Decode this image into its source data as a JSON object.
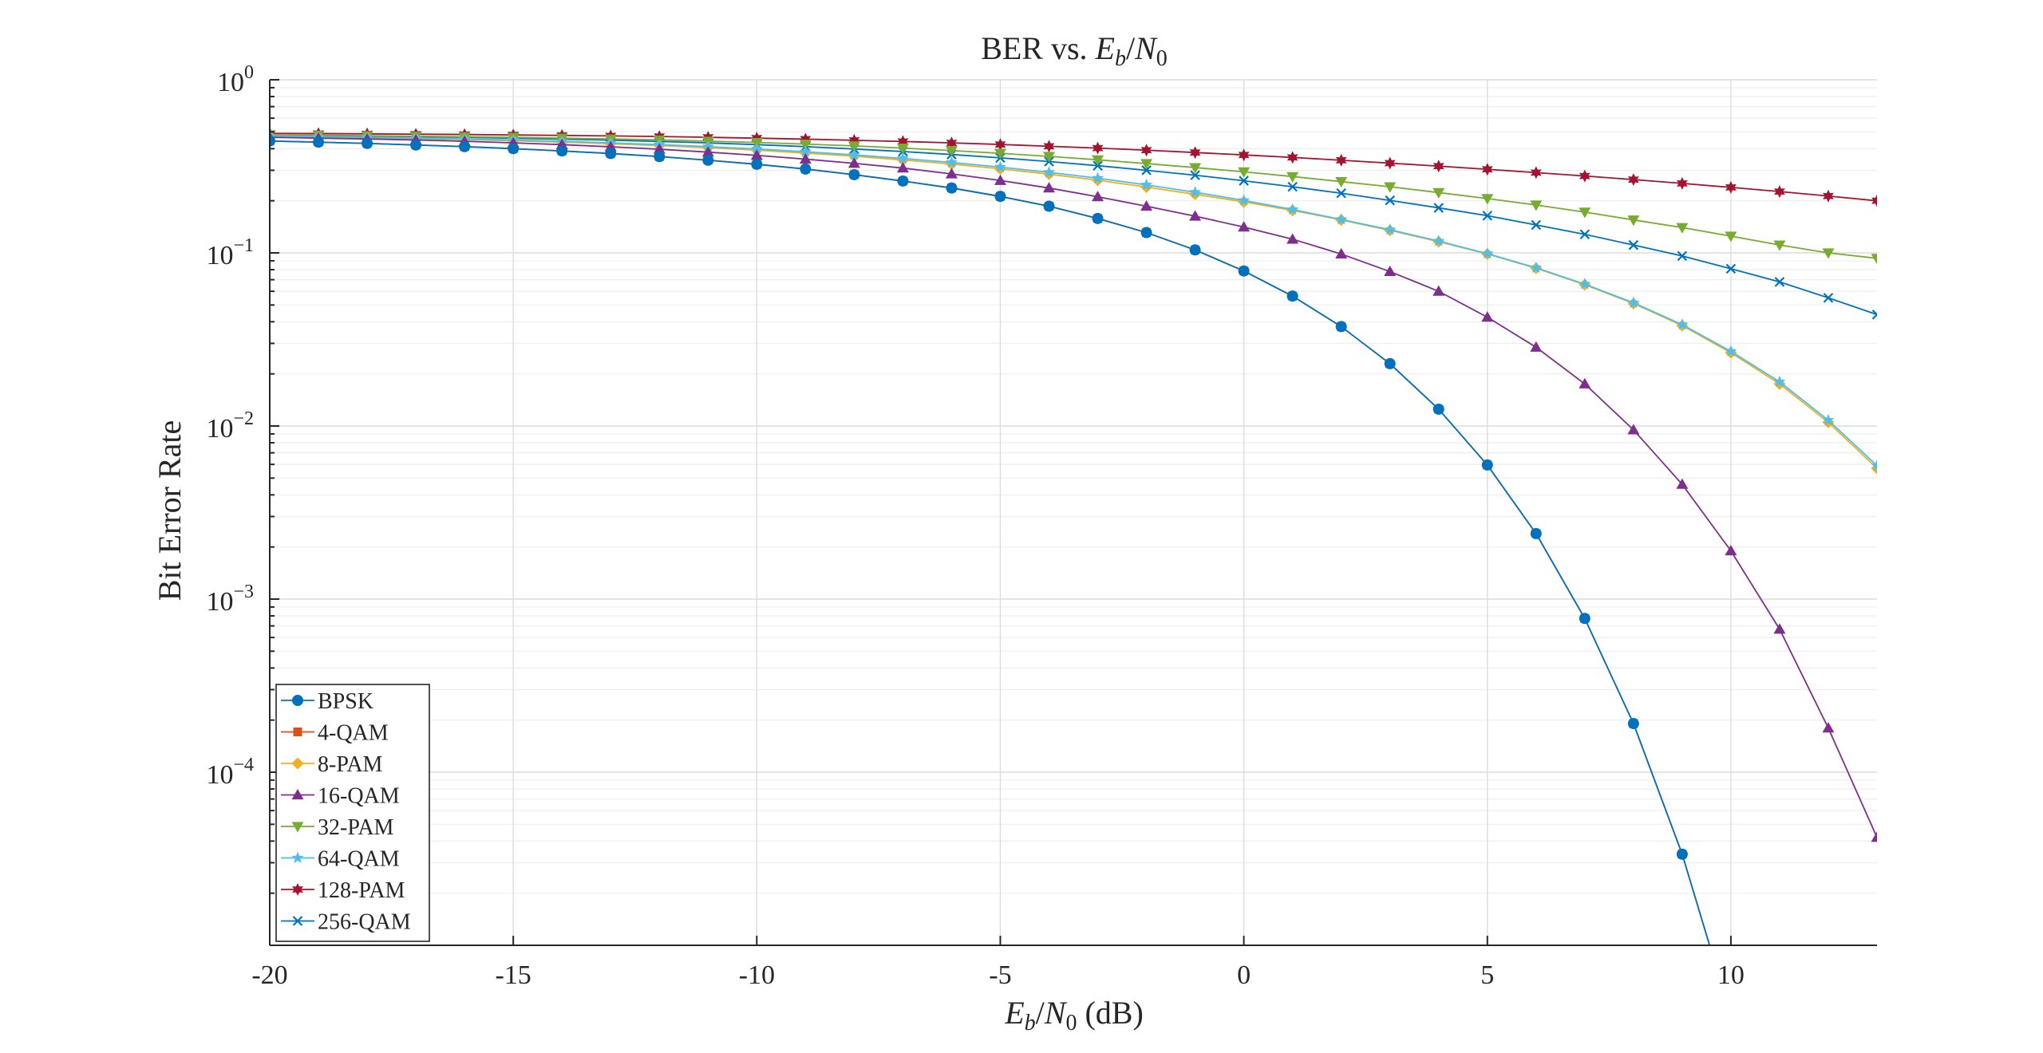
{
  "chart_data": {
    "type": "line",
    "title": "BER vs. Eb/N0",
    "title_parts": {
      "prefix": "BER vs. ",
      "eb_main": "E",
      "eb_sub": "b",
      "slash": "/",
      "n0_main": "N",
      "n0_sub": "0"
    },
    "xlabel": "Eb/N0 (dB)",
    "xlabel_parts": {
      "eb_main": "E",
      "eb_sub": "b",
      "slash": "/",
      "n0_main": "N",
      "n0_sub": "0",
      "suffix": " (dB)"
    },
    "ylabel": "Bit Error Rate",
    "xlim": [
      -20,
      13
    ],
    "ylim": [
      1e-05,
      1
    ],
    "yscale": "log",
    "grid": true,
    "legend_position": "bottom-left",
    "x_ticks": [
      -20,
      -15,
      -10,
      -5,
      0,
      5,
      10
    ],
    "x_tick_labels": [
      "-20",
      "-15",
      "-10",
      "-5",
      "0",
      "5",
      "10"
    ],
    "y_ticks": [
      0.0001,
      0.001,
      0.01,
      0.1,
      1
    ],
    "y_tick_labels": [
      {
        "base": "10",
        "exp": "−4"
      },
      {
        "base": "10",
        "exp": "−3"
      },
      {
        "base": "10",
        "exp": "−2"
      },
      {
        "base": "10",
        "exp": "−1"
      },
      {
        "base": "10",
        "exp": "0"
      }
    ],
    "x": [
      -20,
      -19,
      -18,
      -17,
      -16,
      -15,
      -14,
      -13,
      -12,
      -11,
      -10,
      -9,
      -8,
      -7,
      -6,
      -5,
      -4,
      -3,
      -2,
      -1,
      0,
      1,
      2,
      3,
      4,
      5,
      6,
      7,
      8,
      9,
      10,
      11,
      12,
      13
    ],
    "series": [
      {
        "name": "BPSK",
        "color": "#0072BD",
        "marker": "circle",
        "values": [
          0.443,
          0.436,
          0.429,
          0.42,
          0.411,
          0.4,
          0.388,
          0.375,
          0.36,
          0.343,
          0.325,
          0.305,
          0.283,
          0.26,
          0.237,
          0.212,
          0.186,
          0.158,
          0.131,
          0.104,
          0.0786,
          0.0563,
          0.0375,
          0.0229,
          0.0125,
          0.00595,
          0.00239,
          0.000773,
          0.000191,
          3.36e-05,
          3.9e-06,
          null,
          null,
          null
        ]
      },
      {
        "name": "4-QAM",
        "color": "#D95319",
        "marker": "square",
        "values": [
          0.443,
          0.436,
          0.429,
          0.42,
          0.411,
          0.4,
          0.388,
          0.375,
          0.36,
          0.343,
          0.325,
          0.305,
          0.283,
          0.26,
          0.237,
          0.212,
          0.186,
          0.158,
          0.131,
          0.104,
          0.0786,
          0.0563,
          0.0375,
          0.0229,
          0.0125,
          0.00595,
          0.00239,
          0.000773,
          0.000191,
          3.36e-05,
          3.9e-06,
          null,
          null,
          null
        ]
      },
      {
        "name": "8-PAM",
        "color": "#EDB120",
        "marker": "diamond",
        "values": [
          0.469,
          0.465,
          0.461,
          0.456,
          0.451,
          0.444,
          0.436,
          0.427,
          0.417,
          0.405,
          0.392,
          0.377,
          0.362,
          0.344,
          0.326,
          0.306,
          0.285,
          0.263,
          0.24,
          0.218,
          0.197,
          0.176,
          0.155,
          0.135,
          0.116,
          0.0985,
          0.0815,
          0.0655,
          0.051,
          0.038,
          0.0265,
          0.0175,
          0.0105,
          0.0057
        ]
      },
      {
        "name": "16-QAM",
        "color": "#7E2F8E",
        "marker": "triangle-up",
        "values": [
          0.465,
          0.46,
          0.455,
          0.449,
          0.441,
          0.432,
          0.422,
          0.41,
          0.397,
          0.382,
          0.366,
          0.348,
          0.329,
          0.309,
          0.286,
          0.262,
          0.237,
          0.211,
          0.186,
          0.163,
          0.141,
          0.12,
          0.0985,
          0.078,
          0.06,
          0.0425,
          0.0285,
          0.0175,
          0.0095,
          0.0046,
          0.0019,
          0.00067,
          0.00018,
          4.2e-05
        ]
      },
      {
        "name": "32-PAM",
        "color": "#77AC30",
        "marker": "triangle-down",
        "values": [
          0.48,
          0.478,
          0.475,
          0.472,
          0.469,
          0.465,
          0.46,
          0.455,
          0.449,
          0.442,
          0.434,
          0.425,
          0.415,
          0.403,
          0.39,
          0.376,
          0.361,
          0.345,
          0.328,
          0.311,
          0.294,
          0.276,
          0.258,
          0.241,
          0.223,
          0.206,
          0.189,
          0.172,
          0.155,
          0.14,
          0.125,
          0.111,
          0.1,
          0.093
        ]
      },
      {
        "name": "64-QAM",
        "color": "#4DBEEE",
        "marker": "star",
        "values": [
          0.473,
          0.469,
          0.465,
          0.461,
          0.455,
          0.449,
          0.441,
          0.432,
          0.422,
          0.411,
          0.398,
          0.384,
          0.368,
          0.351,
          0.333,
          0.313,
          0.292,
          0.27,
          0.247,
          0.224,
          0.201,
          0.178,
          0.156,
          0.136,
          0.117,
          0.099,
          0.082,
          0.066,
          0.0515,
          0.0385,
          0.027,
          0.018,
          0.0108,
          0.0059
        ]
      },
      {
        "name": "128-PAM",
        "color": "#A2142F",
        "marker": "hexagram",
        "values": [
          0.49,
          0.489,
          0.487,
          0.485,
          0.483,
          0.48,
          0.477,
          0.474,
          0.47,
          0.465,
          0.46,
          0.454,
          0.447,
          0.44,
          0.432,
          0.423,
          0.413,
          0.403,
          0.392,
          0.38,
          0.368,
          0.356,
          0.343,
          0.33,
          0.317,
          0.304,
          0.291,
          0.278,
          0.265,
          0.252,
          0.239,
          0.226,
          0.213,
          0.2
        ]
      },
      {
        "name": "256-QAM",
        "color": "#0072BD",
        "marker": "x",
        "values": [
          0.478,
          0.475,
          0.472,
          0.469,
          0.465,
          0.46,
          0.454,
          0.448,
          0.44,
          0.432,
          0.422,
          0.411,
          0.398,
          0.385,
          0.37,
          0.354,
          0.337,
          0.319,
          0.3,
          0.281,
          0.261,
          0.241,
          0.221,
          0.201,
          0.182,
          0.164,
          0.145,
          0.128,
          0.111,
          0.096,
          0.081,
          0.068,
          0.055,
          0.044
        ]
      }
    ]
  }
}
